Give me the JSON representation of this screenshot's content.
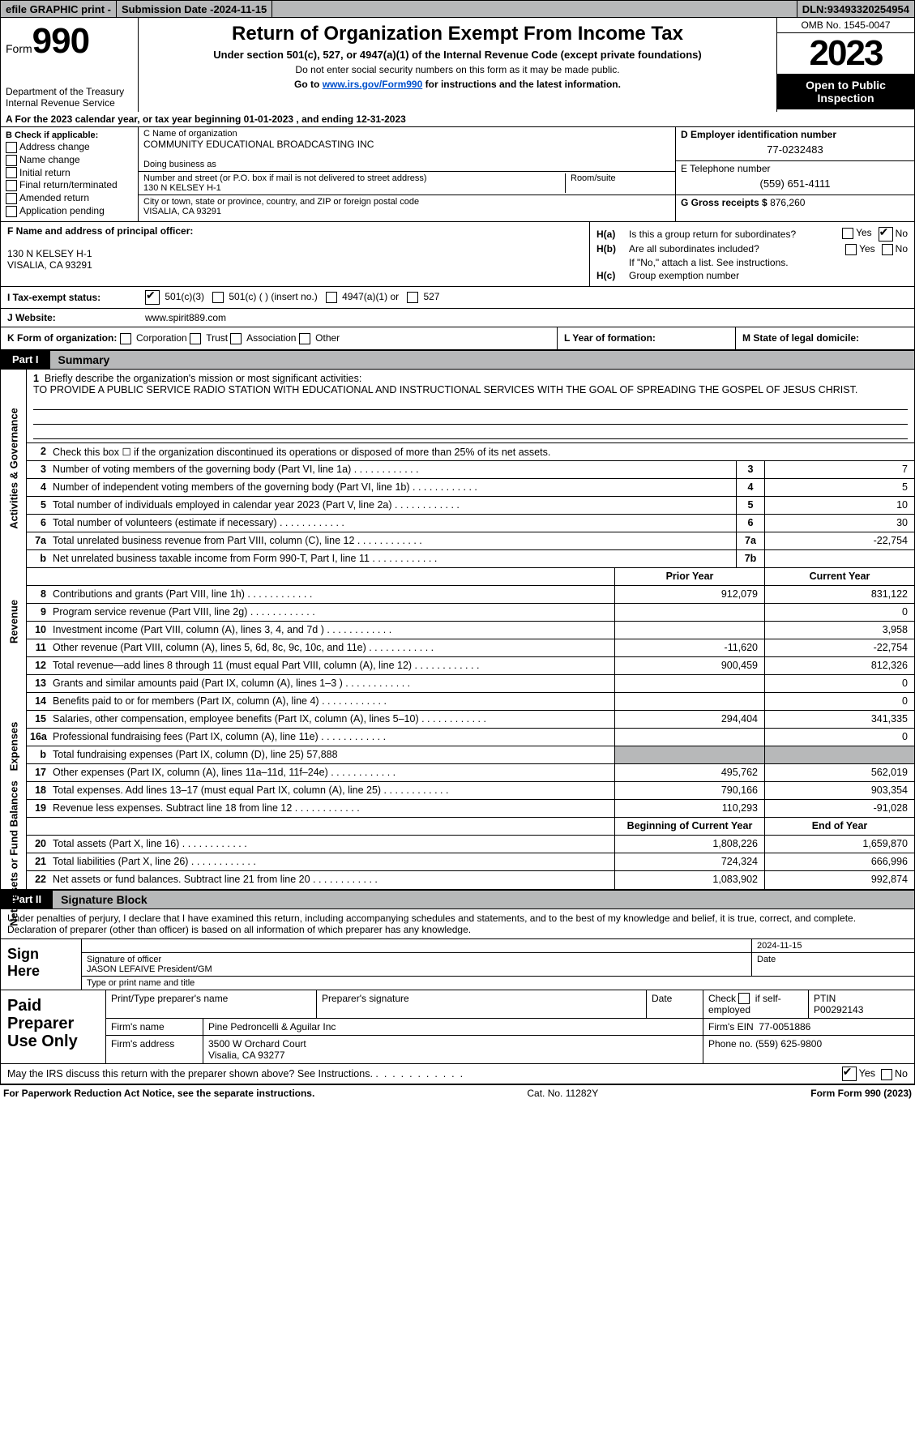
{
  "topbar": {
    "efile": "efile GRAPHIC print -",
    "submission_label": "Submission Date - ",
    "submission_date": "2024-11-15",
    "dln_label": "DLN: ",
    "dln": "93493320254954"
  },
  "header": {
    "form_label": "Form",
    "form_num": "990",
    "dept1": "Department of the Treasury",
    "dept2": "Internal Revenue Service",
    "title": "Return of Organization Exempt From Income Tax",
    "sub": "Under section 501(c), 527, or 4947(a)(1) of the Internal Revenue Code (except private foundations)",
    "note1": "Do not enter social security numbers on this form as it may be made public.",
    "note2_pre": "Go to ",
    "note2_link": "www.irs.gov/Form990",
    "note2_post": " for instructions and the latest information.",
    "omb": "OMB No. 1545-0047",
    "year": "2023",
    "open": "Open to Public Inspection"
  },
  "period": {
    "pre": "A For the 2023 calendar year, or tax year beginning ",
    "begin": "01-01-2023",
    "mid": " , and ending ",
    "end": "12-31-2023"
  },
  "boxB": {
    "title": "B Check if applicable:",
    "opts": [
      "Address change",
      "Name change",
      "Initial return",
      "Final return/terminated",
      "Amended return",
      "Application pending"
    ]
  },
  "boxC": {
    "name_lbl": "C Name of organization",
    "name": "COMMUNITY EDUCATIONAL BROADCASTING INC",
    "dba_lbl": "Doing business as",
    "addr_lbl": "Number and street (or P.O. box if mail is not delivered to street address)",
    "room_lbl": "Room/suite",
    "addr": "130 N KELSEY H-1",
    "city_lbl": "City or town, state or province, country, and ZIP or foreign postal code",
    "city": "VISALIA, CA  93291"
  },
  "boxD": {
    "ein_lbl": "D Employer identification number",
    "ein": "77-0232483",
    "tel_lbl": "E Telephone number",
    "tel": "(559) 651-4111",
    "gross_lbl": "G Gross receipts $ ",
    "gross": "876,260"
  },
  "boxF": {
    "lbl": "F  Name and address of principal officer:",
    "addr1": "130 N KELSEY H-1",
    "addr2": "VISALIA, CA  93291"
  },
  "boxH": {
    "a_lbl": "H(a)",
    "a_txt": "Is this a group return for subordinates?",
    "b_lbl": "H(b)",
    "b_txt": "Are all subordinates included?",
    "b_note": "If \"No,\" attach a list. See instructions.",
    "c_lbl": "H(c)",
    "c_txt": "Group exemption number ",
    "yes": "Yes",
    "no": "No"
  },
  "lineI": {
    "lbl": "I    Tax-exempt status:",
    "o1": "501(c)(3)",
    "o2": "501(c) (  ) (insert no.)",
    "o3": "4947(a)(1) or",
    "o4": "527"
  },
  "lineJ": {
    "lbl": "J    Website:",
    "val": "www.spirit889.com"
  },
  "lineK": {
    "lbl": "K Form of organization:",
    "opts": [
      "Corporation",
      "Trust",
      "Association",
      "Other"
    ],
    "L": "L Year of formation:",
    "M": "M State of legal domicile:"
  },
  "partI": {
    "num": "Part I",
    "title": "Summary"
  },
  "mission": {
    "n": "1",
    "lbl": "Briefly describe the organization's mission or most significant activities:",
    "txt": "TO PROVIDE A PUBLIC SERVICE RADIO STATION WITH EDUCATIONAL AND INSTRUCTIONAL SERVICES WITH THE GOAL OF SPREADING THE GOSPEL OF JESUS CHRIST."
  },
  "vtabs": {
    "gov": "Activities & Governance",
    "rev": "Revenue",
    "exp": "Expenses",
    "net": "Net Assets or Fund Balances"
  },
  "gov_lines": [
    {
      "n": "2",
      "t": "Check this box  ☐  if the organization discontinued its operations or disposed of more than 25% of its net assets."
    },
    {
      "n": "3",
      "t": "Number of voting members of the governing body (Part VI, line 1a)",
      "box": "3",
      "v": "7"
    },
    {
      "n": "4",
      "t": "Number of independent voting members of the governing body (Part VI, line 1b)",
      "box": "4",
      "v": "5"
    },
    {
      "n": "5",
      "t": "Total number of individuals employed in calendar year 2023 (Part V, line 2a)",
      "box": "5",
      "v": "10"
    },
    {
      "n": "6",
      "t": "Total number of volunteers (estimate if necessary)",
      "box": "6",
      "v": "30"
    },
    {
      "n": "7a",
      "t": "Total unrelated business revenue from Part VIII, column (C), line 12",
      "box": "7a",
      "v": "-22,754"
    },
    {
      "n": "b",
      "t": "Net unrelated business taxable income from Form 990-T, Part I, line 11",
      "box": "7b",
      "v": ""
    }
  ],
  "rev_hdr": {
    "c1": "Prior Year",
    "c2": "Current Year"
  },
  "rev_lines": [
    {
      "n": "8",
      "t": "Contributions and grants (Part VIII, line 1h)",
      "v1": "912,079",
      "v2": "831,122"
    },
    {
      "n": "9",
      "t": "Program service revenue (Part VIII, line 2g)",
      "v1": "",
      "v2": "0"
    },
    {
      "n": "10",
      "t": "Investment income (Part VIII, column (A), lines 3, 4, and 7d )",
      "v1": "",
      "v2": "3,958"
    },
    {
      "n": "11",
      "t": "Other revenue (Part VIII, column (A), lines 5, 6d, 8c, 9c, 10c, and 11e)",
      "v1": "-11,620",
      "v2": "-22,754"
    },
    {
      "n": "12",
      "t": "Total revenue—add lines 8 through 11 (must equal Part VIII, column (A), line 12)",
      "v1": "900,459",
      "v2": "812,326"
    }
  ],
  "exp_lines": [
    {
      "n": "13",
      "t": "Grants and similar amounts paid (Part IX, column (A), lines 1–3 )",
      "v1": "",
      "v2": "0"
    },
    {
      "n": "14",
      "t": "Benefits paid to or for members (Part IX, column (A), line 4)",
      "v1": "",
      "v2": "0"
    },
    {
      "n": "15",
      "t": "Salaries, other compensation, employee benefits (Part IX, column (A), lines 5–10)",
      "v1": "294,404",
      "v2": "341,335"
    },
    {
      "n": "16a",
      "t": "Professional fundraising fees (Part IX, column (A), line 11e)",
      "v1": "",
      "v2": "0"
    },
    {
      "n": "b",
      "t": "Total fundraising expenses (Part IX, column (D), line 25) 57,888",
      "grey": true
    },
    {
      "n": "17",
      "t": "Other expenses (Part IX, column (A), lines 11a–11d, 11f–24e)",
      "v1": "495,762",
      "v2": "562,019"
    },
    {
      "n": "18",
      "t": "Total expenses. Add lines 13–17 (must equal Part IX, column (A), line 25)",
      "v1": "790,166",
      "v2": "903,354"
    },
    {
      "n": "19",
      "t": "Revenue less expenses. Subtract line 18 from line 12",
      "v1": "110,293",
      "v2": "-91,028"
    }
  ],
  "net_hdr": {
    "c1": "Beginning of Current Year",
    "c2": "End of Year"
  },
  "net_lines": [
    {
      "n": "20",
      "t": "Total assets (Part X, line 16)",
      "v1": "1,808,226",
      "v2": "1,659,870"
    },
    {
      "n": "21",
      "t": "Total liabilities (Part X, line 26)",
      "v1": "724,324",
      "v2": "666,996"
    },
    {
      "n": "22",
      "t": "Net assets or fund balances. Subtract line 21 from line 20",
      "v1": "1,083,902",
      "v2": "992,874"
    }
  ],
  "partII": {
    "num": "Part II",
    "title": "Signature Block"
  },
  "decl": "Under penalties of perjury, I declare that I have examined this return, including accompanying schedules and statements, and to the best of my knowledge and belief, it is true, correct, and complete. Declaration of preparer (other than officer) is based on all information of which preparer has any knowledge.",
  "sign": {
    "lbl": "Sign Here",
    "date": "2024-11-15",
    "sig_lbl": "Signature of officer",
    "name": "JASON LEFAIVE  President/GM",
    "name_lbl": "Type or print name and title",
    "date_lbl": "Date"
  },
  "paid": {
    "lbl": "Paid Preparer Use Only",
    "h1": "Print/Type preparer's name",
    "h2": "Preparer's signature",
    "h3": "Date",
    "h4_pre": "Check",
    "h4_post": "if self-employed",
    "h5": "PTIN",
    "ptin": "P00292143",
    "firm_lbl": "Firm's name",
    "firm": "Pine Pedroncelli & Aguilar Inc",
    "ein_lbl": "Firm's EIN",
    "ein": "77-0051886",
    "addr_lbl": "Firm's address",
    "addr1": "3500 W Orchard Court",
    "addr2": "Visalia, CA  93277",
    "phone_lbl": "Phone no.",
    "phone": "(559) 625-9800"
  },
  "discuss": {
    "t": "May the IRS discuss this return with the preparer shown above? See Instructions.",
    "yes": "Yes",
    "no": "No"
  },
  "footer": {
    "l": "For Paperwork Reduction Act Notice, see the separate instructions.",
    "c": "Cat. No. 11282Y",
    "r": "Form 990 (2023)"
  }
}
